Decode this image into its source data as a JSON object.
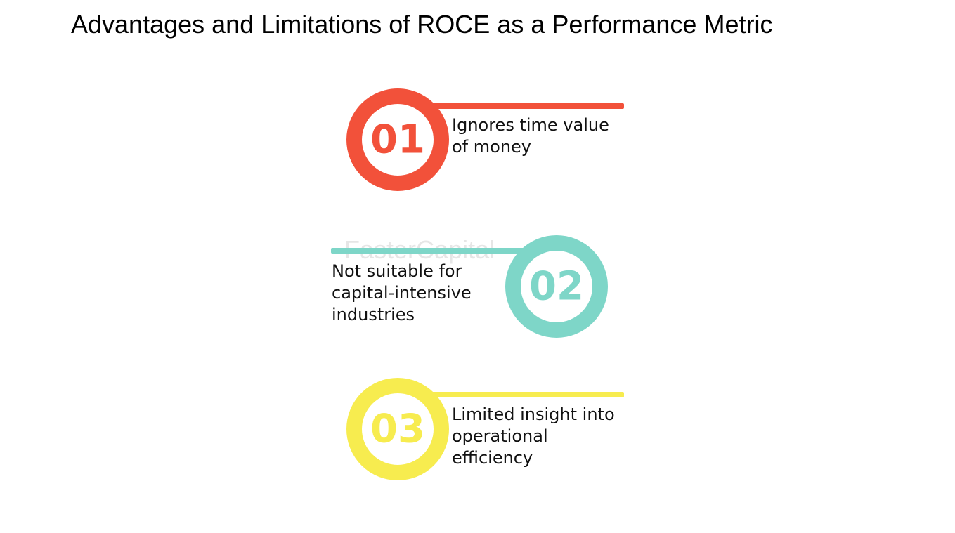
{
  "title": "Advantages and Limitations of ROCE as a Performance Metric",
  "watermark": "FasterCapital",
  "items": [
    {
      "number": "01",
      "lines": [
        "Ignores time value",
        "of money"
      ]
    },
    {
      "number": "02",
      "lines": [
        "Not suitable for",
        "capital-intensive",
        "industries"
      ]
    },
    {
      "number": "03",
      "lines": [
        "Limited insight into",
        "operational",
        "efficiency"
      ]
    }
  ]
}
